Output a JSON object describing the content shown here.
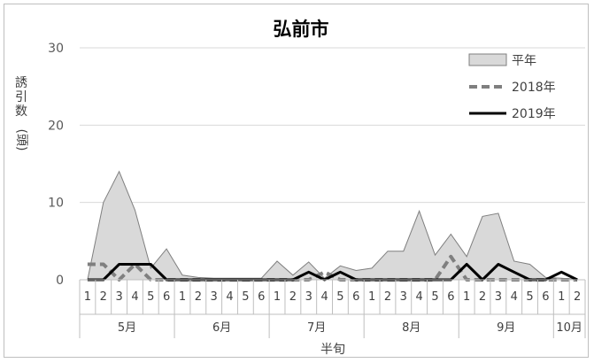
{
  "chart_data": {
    "type": "area",
    "title": "弘前市",
    "xlabel": "半旬",
    "ylabel": "誘引数(頭)",
    "ylim": [
      0,
      30
    ],
    "yticks": [
      0,
      10,
      20,
      30
    ],
    "grid": true,
    "legend_position": "top-right",
    "months": [
      {
        "label": "5月",
        "halves": [
          "1",
          "2",
          "3",
          "4",
          "5",
          "6"
        ]
      },
      {
        "label": "6月",
        "halves": [
          "1",
          "2",
          "3",
          "4",
          "5",
          "6"
        ]
      },
      {
        "label": "7月",
        "halves": [
          "1",
          "2",
          "3",
          "4",
          "5",
          "6"
        ]
      },
      {
        "label": "8月",
        "halves": [
          "1",
          "2",
          "3",
          "4",
          "5",
          "6"
        ]
      },
      {
        "label": "9月",
        "halves": [
          "1",
          "2",
          "3",
          "4",
          "5",
          "6"
        ]
      },
      {
        "label": "10月",
        "halves": [
          "1",
          "2"
        ]
      }
    ],
    "series": [
      {
        "name": "平年",
        "style": "area",
        "fill": "#d9d9d9",
        "stroke": "#7f7f7f",
        "values": [
          0,
          10,
          14,
          9,
          1.5,
          4,
          0.6,
          0.3,
          0.2,
          0.2,
          0.2,
          0.2,
          2.4,
          0.6,
          2.3,
          0.2,
          1.8,
          1.2,
          1.5,
          3.7,
          3.7,
          8.9,
          3.2,
          5.9,
          3.0,
          8.2,
          8.6,
          2.4,
          2.0,
          0.3,
          0.2,
          0.1
        ]
      },
      {
        "name": "2018年",
        "style": "dashed",
        "stroke": "#7f7f7f",
        "values": [
          2,
          2,
          0,
          2,
          0,
          0,
          0,
          0,
          0,
          0,
          0,
          0,
          0,
          0,
          0,
          1,
          0,
          0,
          0,
          0,
          0,
          0,
          0,
          3,
          0,
          0,
          0,
          0,
          0,
          0,
          0,
          0
        ]
      },
      {
        "name": "2019年",
        "style": "solid",
        "stroke": "#000000",
        "values": [
          0,
          0,
          2,
          2,
          2,
          0,
          0,
          0,
          0,
          0,
          0,
          0,
          0,
          0,
          1,
          0,
          1,
          0,
          0,
          0,
          0,
          0,
          0,
          0,
          2,
          0,
          2,
          1,
          0,
          0,
          1,
          0
        ]
      }
    ]
  }
}
